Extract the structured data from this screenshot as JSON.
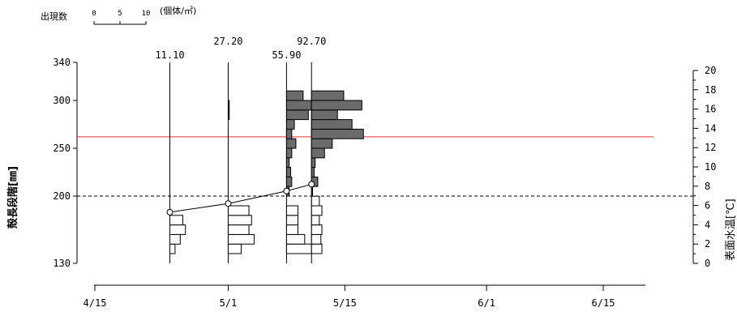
{
  "chart_data": {
    "type": "bar",
    "legend": {
      "label": "出現数",
      "scale_ticks": [
        "0",
        "5",
        "10"
      ],
      "unit": "(個体/㎡)"
    },
    "left_axis": {
      "label": "殻長段階[㎜]",
      "ticks": [
        "340",
        "300",
        "250",
        "200",
        "130"
      ],
      "tick_values": [
        340,
        300,
        250,
        200,
        130
      ]
    },
    "right_axis": {
      "label": "表面水温[℃]",
      "ticks": [
        "0",
        "2",
        "4",
        "6",
        "8",
        "10",
        "12",
        "14",
        "16",
        "18",
        "20"
      ],
      "tick_values": [
        0,
        2,
        4,
        6,
        8,
        10,
        12,
        14,
        16,
        18,
        20
      ],
      "ylim": [
        0,
        20
      ]
    },
    "x_axis": {
      "ticks": [
        "4/15",
        "5/1",
        "5/15",
        "6/1",
        "6/15"
      ],
      "tick_dates": [
        "2000-04-15",
        "2000-05-01",
        "2000-05-15",
        "2000-06-01",
        "2000-06-15"
      ]
    },
    "reference_lines": [
      {
        "kind": "threshold",
        "color": "#e8302a",
        "style": "solid",
        "y_length": 262
      },
      {
        "kind": "threshold",
        "color": "#000000",
        "style": "dashed",
        "y_length": 200
      }
    ],
    "surveys": [
      {
        "date": "2000-04-24",
        "total_label": "11.10",
        "mean_temp": 5.3,
        "bins_below": [
          1,
          2,
          3,
          2.5
        ]
      },
      {
        "date": "2000-05-01",
        "total_label": "27.20",
        "mean_temp": 6.2,
        "bins_above": [
          0,
          0,
          0,
          0,
          0,
          0,
          0,
          0,
          0.2,
          0.2
        ],
        "bins_below": [
          2.5,
          5,
          4,
          4.5,
          4
        ]
      },
      {
        "date": "2000-05-08",
        "total_label": "55.90",
        "mean_temp": 7.5,
        "bins_above": [
          0.5,
          1,
          0.8,
          0.5,
          1,
          1.8,
          1,
          1.5,
          4.2,
          8.2,
          3.2
        ],
        "bins_below": [
          5,
          3.5,
          2.2,
          2.2,
          2.2
        ]
      },
      {
        "date": "2000-05-11",
        "total_label": "92.70",
        "mean_temp": 8.2,
        "bins_above": [
          0.2,
          1.2,
          0.5,
          0.7,
          2.5,
          4,
          10,
          7.8,
          5,
          9.7,
          6.2
        ],
        "bins_below": [
          2,
          1.8,
          2,
          1.5,
          2,
          1.5
        ]
      }
    ],
    "colors": {
      "above_bar_fill": "#6b6b6b",
      "below_bar_fill": "#ffffff",
      "bar_stroke": "#000000",
      "threshold_red": "#e8302a"
    }
  }
}
